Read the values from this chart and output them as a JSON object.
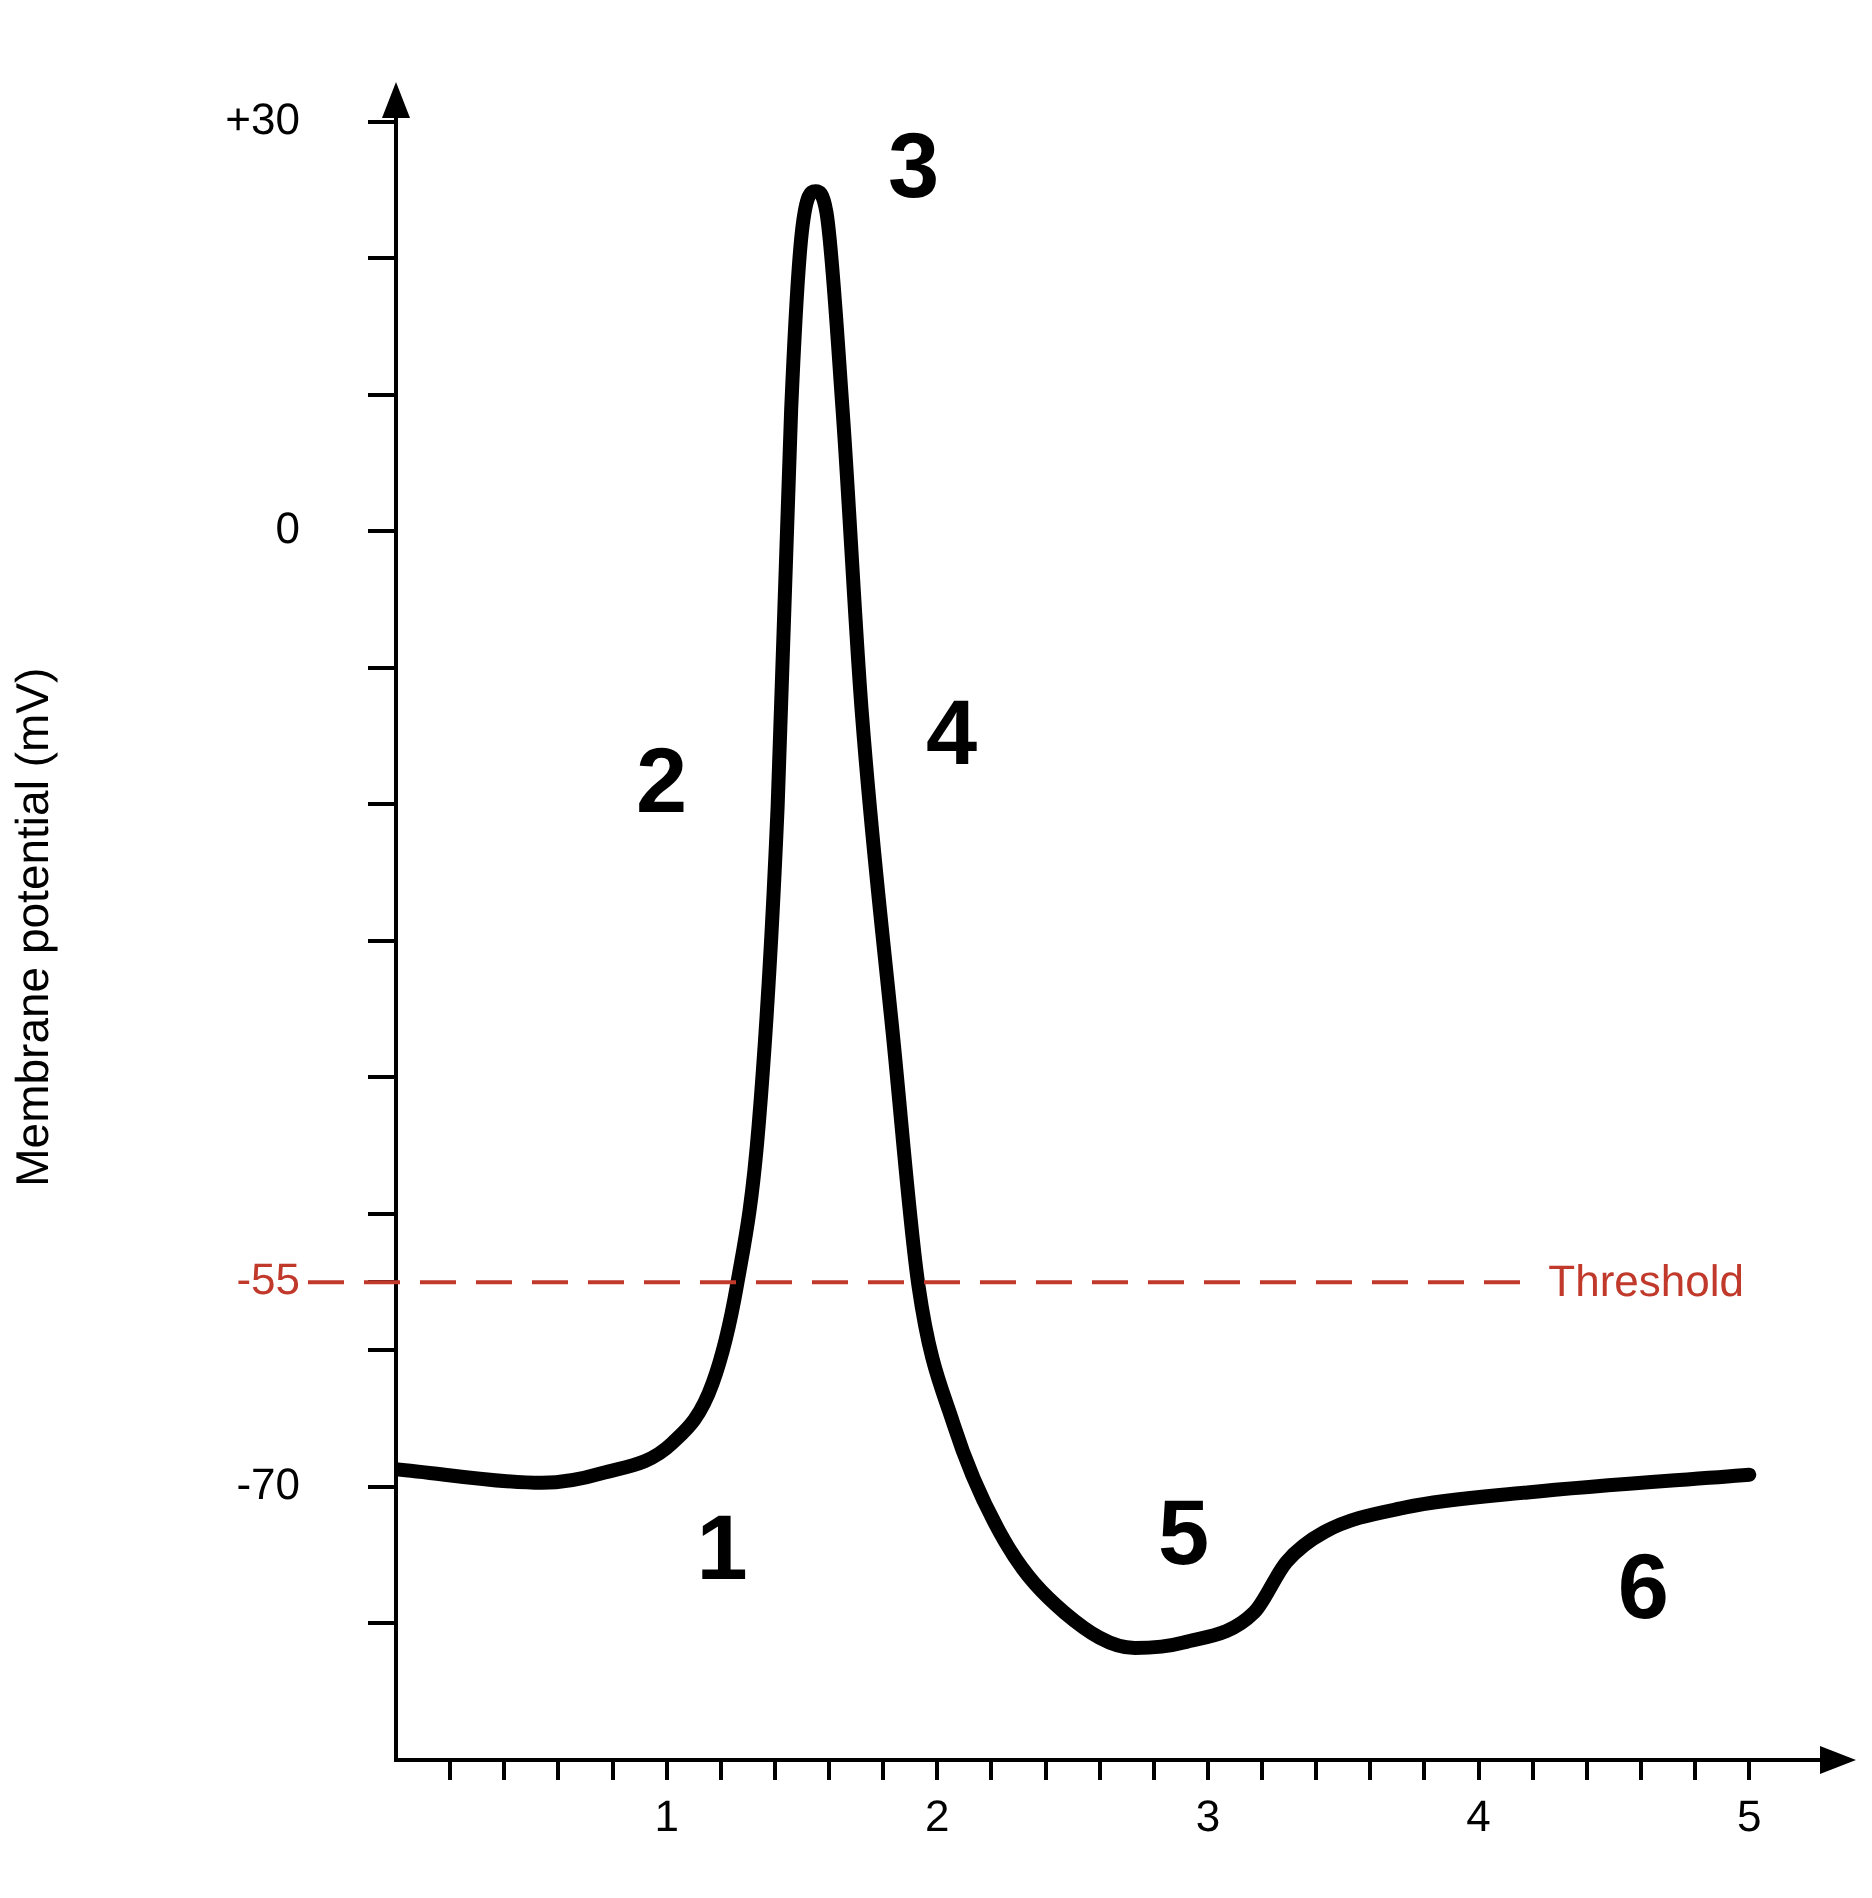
{
  "chart_data": {
    "type": "line",
    "ylabel": "Membrane potential (mV)",
    "x": [
      0,
      0.54,
      0.76,
      1.02,
      1.17,
      1.26,
      1.34,
      1.41,
      1.46,
      1.5,
      1.55,
      1.59,
      1.65,
      1.72,
      1.84,
      1.93,
      2.06,
      2.25,
      2.47,
      2.73,
      2.91,
      3.17,
      3.29,
      3.43,
      3.73,
      4.18,
      5.0
    ],
    "series": [
      {
        "color": "#000000",
        "values": [
          -68.7,
          -69.7,
          -69,
          -66.8,
          -62.4,
          -55.2,
          -43.5,
          -20.2,
          8.9,
          22,
          24.9,
          23.4,
          8.9,
          -13,
          -37.7,
          -55.2,
          -65.4,
          -74,
          -79.2,
          -81.8,
          -81.4,
          -79.2,
          -75.5,
          -73.3,
          -71.5,
          -70.4,
          -69.1
        ]
      }
    ],
    "xlim": [
      0,
      5.35
    ],
    "xticks": [
      {
        "value": 0.2,
        "label": null
      },
      {
        "value": 0.4,
        "label": null
      },
      {
        "value": 0.6,
        "label": null
      },
      {
        "value": 0.8,
        "label": null
      },
      1,
      {
        "value": 1.2,
        "label": null
      },
      {
        "value": 1.4,
        "label": null
      },
      {
        "value": 1.6,
        "label": null
      },
      {
        "value": 1.8,
        "label": null
      },
      2,
      {
        "value": 2.2,
        "label": null
      },
      {
        "value": 2.4,
        "label": null
      },
      {
        "value": 2.6,
        "label": null
      },
      {
        "value": 2.8,
        "label": null
      },
      3,
      {
        "value": 3.2,
        "label": null
      },
      {
        "value": 3.4,
        "label": null
      },
      {
        "value": 3.6,
        "label": null
      },
      {
        "value": 3.8,
        "label": null
      },
      4,
      {
        "value": 4.2,
        "label": null
      },
      {
        "value": 4.4,
        "label": null
      },
      {
        "value": 4.6,
        "label": null
      },
      {
        "value": 4.8,
        "label": null
      },
      5
    ],
    "ylim": [
      -90,
      32
    ],
    "yticks": [
      {
        "value": -80,
        "label": null
      },
      -70,
      {
        "value": -60,
        "label": null
      },
      -55,
      {
        "value": -50,
        "label": null
      },
      {
        "value": -40,
        "label": null
      },
      {
        "value": -30,
        "label": null
      },
      {
        "value": -20,
        "label": null
      },
      {
        "value": -10,
        "label": null
      },
      0,
      {
        "value": 10,
        "label": null
      },
      {
        "value": 20,
        "label": null
      },
      {
        "value": 30,
        "label": "+30"
      }
    ],
    "ref_lines": [
      {
        "axis": "y",
        "value": -55,
        "label": "Threshold",
        "color": "#c0392b",
        "line_style": "dashed"
      }
    ],
    "annotations": [
      {
        "text": "1",
        "x": 1.02,
        "y": -66.8
      },
      {
        "text": "2",
        "x": 1.41,
        "y": -20.2
      },
      {
        "text": "3",
        "x": 1.55,
        "y": 24.9
      },
      {
        "text": "4",
        "x": 1.72,
        "y": -13
      },
      {
        "text": "5",
        "x": 2.91,
        "y": -81.4
      },
      {
        "text": "6",
        "x": 4.18,
        "y": -70.4
      }
    ],
    "grid": false,
    "legend": false,
    "marker": "none",
    "line_style": "solid"
  }
}
